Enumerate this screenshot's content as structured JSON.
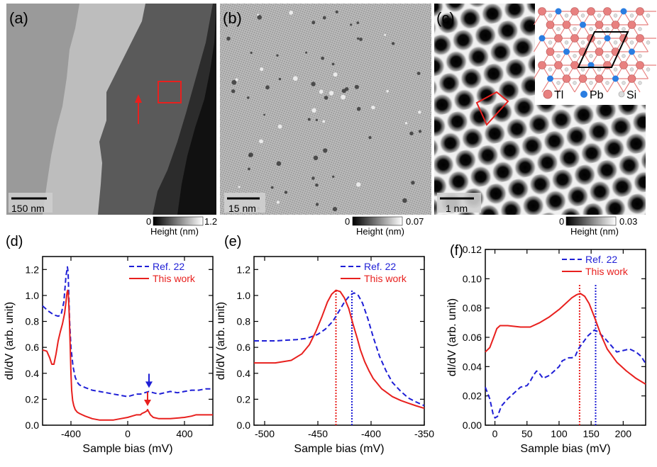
{
  "panels": {
    "a": {
      "label": "(a)",
      "scale_bar": "150 nm",
      "colorbar": {
        "min": "0",
        "max": "1.2",
        "title": "Height (nm)"
      }
    },
    "b": {
      "label": "(b)",
      "scale_bar": "15 nm",
      "colorbar": {
        "min": "0",
        "max": "0.07",
        "title": "Height (nm)"
      }
    },
    "c": {
      "label": "(c)",
      "scale_bar": "1 nm",
      "colorbar": {
        "min": "0",
        "max": "0.03",
        "title": "Height (nm)"
      },
      "inset_legend": [
        "Tl",
        "Pb",
        "Si"
      ]
    }
  },
  "colors": {
    "ref": "#1f1fd6",
    "work": "#e8201e",
    "tl_atom": "#e8807f",
    "pb_atom": "#2a7de1",
    "si_atom": "#dcdcdc",
    "highlight_box": "#e8201e"
  },
  "chart_data": [
    {
      "type": "line",
      "label": "(d)",
      "xlabel": "Sample bias (mV)",
      "ylabel": "dI/dV (arb. unit)",
      "xlim": [
        -600,
        600
      ],
      "ylim": [
        0,
        1.3
      ],
      "xticks": [
        -400,
        0,
        400
      ],
      "xtick_labels": [
        "-400",
        "0",
        "400"
      ],
      "yticks": [
        0,
        0.2,
        0.4,
        0.6,
        0.8,
        1.0,
        1.2
      ],
      "ytick_labels": [
        "0.0",
        "0.2",
        "0.4",
        "0.6",
        "0.8",
        "1.0",
        "1.2"
      ],
      "legend_position": "top-right",
      "annotations": [
        {
          "type": "arrow",
          "series": "Ref. 22",
          "x": 150
        },
        {
          "type": "arrow",
          "series": "This work",
          "x": 140
        }
      ],
      "series": [
        {
          "name": "Ref. 22",
          "style": "dashed",
          "x": [
            -600,
            -560,
            -520,
            -490,
            -470,
            -450,
            -435,
            -425,
            -420,
            -415,
            -410,
            -400,
            -385,
            -370,
            -355,
            -340,
            -320,
            -300,
            -250,
            -200,
            -150,
            -100,
            -50,
            0,
            30,
            60,
            90,
            120,
            150,
            180,
            220,
            260,
            300,
            350,
            400,
            450,
            500,
            550,
            600
          ],
          "y": [
            0.92,
            0.88,
            0.85,
            0.84,
            0.85,
            0.95,
            1.15,
            1.22,
            1.18,
            1.0,
            0.82,
            0.6,
            0.45,
            0.37,
            0.33,
            0.31,
            0.3,
            0.29,
            0.27,
            0.26,
            0.25,
            0.24,
            0.23,
            0.22,
            0.23,
            0.24,
            0.24,
            0.25,
            0.26,
            0.25,
            0.24,
            0.25,
            0.26,
            0.25,
            0.26,
            0.27,
            0.27,
            0.28,
            0.28
          ]
        },
        {
          "name": "This work",
          "style": "solid",
          "x": [
            -600,
            -570,
            -550,
            -535,
            -520,
            -505,
            -490,
            -475,
            -460,
            -445,
            -435,
            -428,
            -423,
            -418,
            -412,
            -405,
            -400,
            -395,
            -388,
            -380,
            -370,
            -355,
            -340,
            -320,
            -300,
            -250,
            -200,
            -150,
            -100,
            -50,
            0,
            30,
            60,
            90,
            100,
            120,
            135,
            140,
            145,
            160,
            180,
            220,
            300,
            400,
            450,
            480,
            600
          ],
          "y": [
            0.58,
            0.57,
            0.52,
            0.47,
            0.47,
            0.55,
            0.65,
            0.72,
            0.78,
            0.86,
            0.95,
            1.02,
            1.04,
            1.0,
            0.85,
            0.6,
            0.4,
            0.27,
            0.19,
            0.15,
            0.12,
            0.1,
            0.09,
            0.08,
            0.07,
            0.05,
            0.04,
            0.04,
            0.04,
            0.05,
            0.06,
            0.07,
            0.08,
            0.08,
            0.09,
            0.1,
            0.11,
            0.12,
            0.11,
            0.08,
            0.06,
            0.05,
            0.05,
            0.06,
            0.07,
            0.08,
            0.08
          ]
        }
      ]
    },
    {
      "type": "line",
      "label": "(e)",
      "xlabel": "Sample bias (mV)",
      "ylabel": "dI/dV (arb. unit)",
      "xlim": [
        -510,
        -350
      ],
      "ylim": [
        0,
        1.3
      ],
      "xticks": [
        -500,
        -450,
        -400,
        -350
      ],
      "xtick_labels": [
        "-500",
        "-450",
        "-400",
        "-350"
      ],
      "yticks": [
        0,
        0.2,
        0.4,
        0.6,
        0.8,
        1.0,
        1.2
      ],
      "ytick_labels": [
        "0.0",
        "0.2",
        "0.4",
        "0.6",
        "0.8",
        "1.0",
        "1.2"
      ],
      "legend_position": "top-right",
      "vlines": [
        {
          "series": "This work",
          "x": -433
        },
        {
          "series": "Ref. 22",
          "x": -418
        }
      ],
      "series": [
        {
          "name": "Ref. 22",
          "style": "dashed",
          "x": [
            -510,
            -490,
            -470,
            -460,
            -450,
            -443,
            -436,
            -430,
            -425,
            -420,
            -416,
            -412,
            -408,
            -403,
            -398,
            -392,
            -386,
            -380,
            -372,
            -365,
            -358,
            -350
          ],
          "y": [
            0.65,
            0.65,
            0.66,
            0.67,
            0.7,
            0.74,
            0.8,
            0.88,
            0.95,
            1.0,
            1.02,
            1.0,
            0.94,
            0.82,
            0.68,
            0.53,
            0.42,
            0.33,
            0.26,
            0.21,
            0.18,
            0.15
          ]
        },
        {
          "name": "This work",
          "style": "solid",
          "x": [
            -510,
            -490,
            -475,
            -465,
            -458,
            -452,
            -446,
            -441,
            -437,
            -433,
            -429,
            -425,
            -421,
            -417,
            -413,
            -410,
            -406,
            -402,
            -398,
            -394,
            -390,
            -385,
            -380,
            -372,
            -365,
            -358,
            -350
          ],
          "y": [
            0.48,
            0.48,
            0.5,
            0.55,
            0.62,
            0.72,
            0.84,
            0.95,
            1.01,
            1.04,
            1.03,
            0.98,
            0.9,
            0.78,
            0.67,
            0.58,
            0.49,
            0.42,
            0.36,
            0.32,
            0.28,
            0.25,
            0.22,
            0.19,
            0.17,
            0.15,
            0.13
          ]
        }
      ]
    },
    {
      "type": "line",
      "label": "(f)",
      "xlabel": "Sample bias (mV)",
      "ylabel": "dI/dV (arb. unit)",
      "xlim": [
        -15,
        235
      ],
      "ylim": [
        0,
        0.12
      ],
      "xticks": [
        0,
        50,
        100,
        150,
        200
      ],
      "xtick_labels": [
        "0",
        "50",
        "100",
        "150",
        "200"
      ],
      "yticks": [
        0,
        0.02,
        0.04,
        0.06,
        0.08,
        0.1,
        0.12
      ],
      "ytick_labels": [
        "0.00",
        "0.02",
        "0.04",
        "0.06",
        "0.08",
        "0.10",
        "0.12"
      ],
      "legend_position": "top-right",
      "vlines": [
        {
          "series": "This work",
          "x": 132
        },
        {
          "series": "Ref. 22",
          "x": 157
        }
      ],
      "series": [
        {
          "name": "Ref. 22",
          "style": "dashed",
          "x": [
            -15,
            -8,
            -3,
            0,
            4,
            10,
            20,
            30,
            40,
            50,
            55,
            60,
            65,
            70,
            75,
            85,
            95,
            100,
            105,
            115,
            120,
            125,
            130,
            135,
            140,
            145,
            150,
            155,
            160,
            170,
            180,
            190,
            200,
            210,
            220,
            228,
            235
          ],
          "y": [
            0.026,
            0.018,
            0.008,
            0.005,
            0.006,
            0.013,
            0.018,
            0.022,
            0.026,
            0.027,
            0.03,
            0.034,
            0.037,
            0.035,
            0.032,
            0.034,
            0.038,
            0.04,
            0.044,
            0.046,
            0.046,
            0.047,
            0.052,
            0.055,
            0.058,
            0.061,
            0.063,
            0.065,
            0.064,
            0.06,
            0.055,
            0.05,
            0.051,
            0.052,
            0.05,
            0.047,
            0.042
          ]
        },
        {
          "name": "This work",
          "style": "solid",
          "x": [
            -15,
            -8,
            -2,
            3,
            8,
            20,
            40,
            55,
            70,
            85,
            100,
            110,
            120,
            127,
            133,
            140,
            147,
            155,
            165,
            175,
            190,
            205,
            220,
            235
          ],
          "y": [
            0.05,
            0.053,
            0.06,
            0.066,
            0.068,
            0.068,
            0.067,
            0.067,
            0.07,
            0.074,
            0.079,
            0.083,
            0.087,
            0.089,
            0.09,
            0.088,
            0.083,
            0.074,
            0.062,
            0.052,
            0.043,
            0.037,
            0.032,
            0.028
          ]
        }
      ]
    }
  ]
}
